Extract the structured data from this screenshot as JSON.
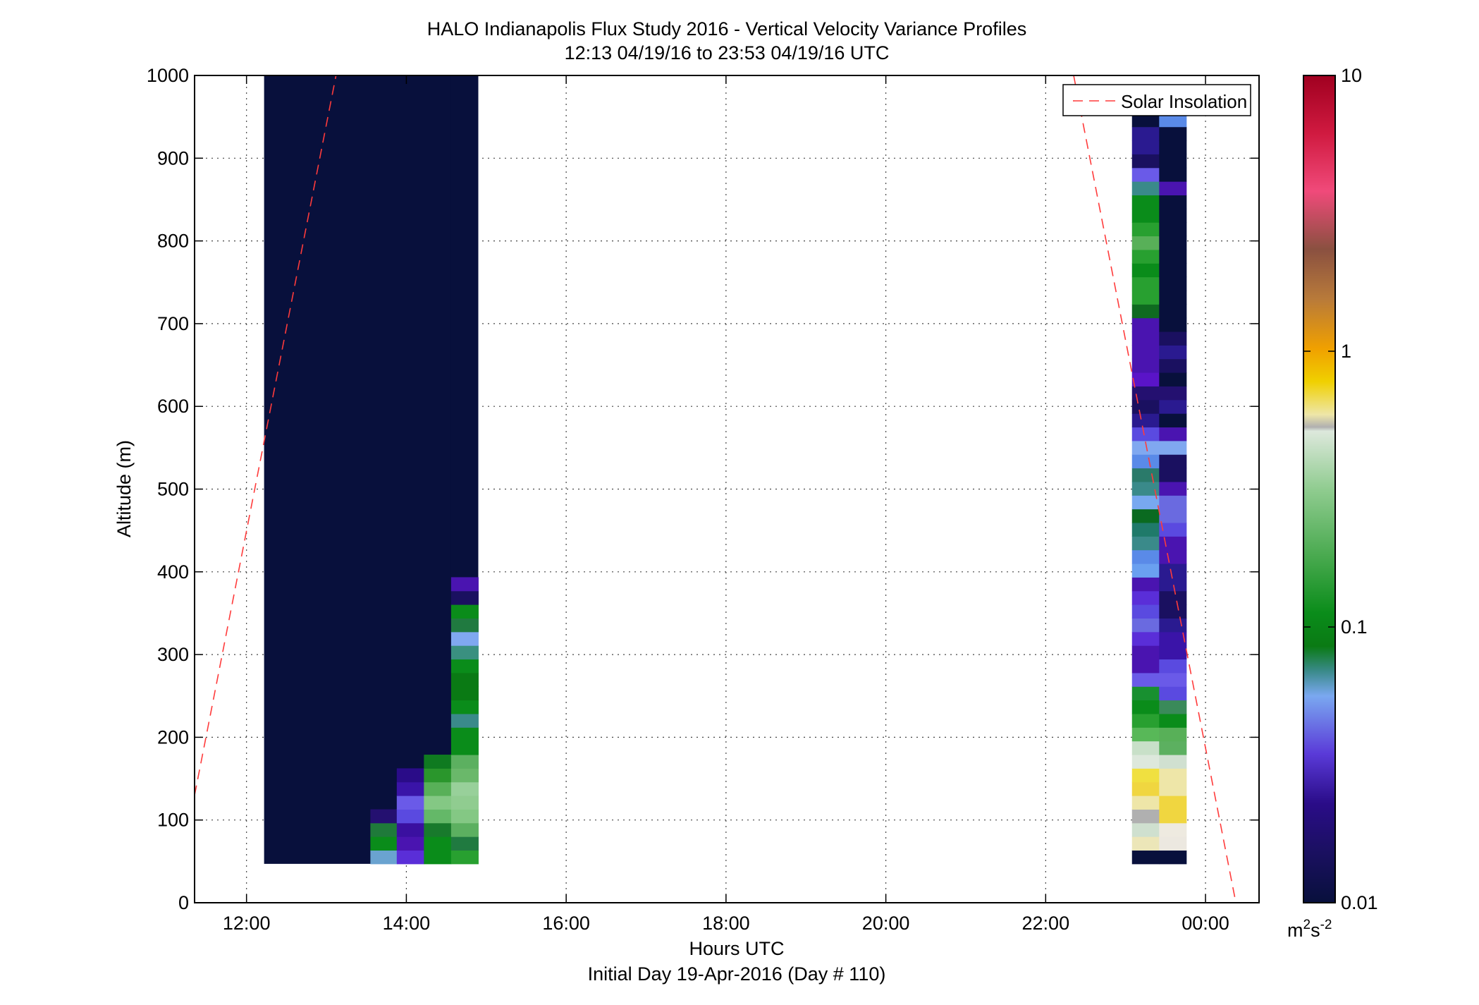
{
  "chart_data": {
    "type": "heatmap",
    "title": "HALO Indianapolis Flux Study 2016 - Vertical Velocity Variance Profiles",
    "subtitle": "12:13 04/19/16 to 23:53 04/19/16  UTC",
    "xlabel": "Hours UTC",
    "xlabel2": "Initial Day 19-Apr-2016 (Day # 110)",
    "ylabel": "Altitude (m)",
    "xlim": [
      11.35,
      24.67
    ],
    "ylim": [
      0,
      1000
    ],
    "x_ticks": [
      12,
      14,
      16,
      18,
      20,
      22,
      24
    ],
    "x_tick_labels": [
      "12:00",
      "14:00",
      "16:00",
      "18:00",
      "20:00",
      "22:00",
      "00:00"
    ],
    "y_ticks": [
      0,
      100,
      200,
      300,
      400,
      500,
      600,
      700,
      800,
      900,
      1000
    ],
    "y_tick_labels": [
      "0",
      "100",
      "200",
      "300",
      "400",
      "500",
      "600",
      "700",
      "800",
      "900",
      "1000"
    ],
    "grid": true,
    "legend_position": "top-right",
    "colorbar": {
      "scale": "log",
      "range": [
        0.01,
        10
      ],
      "tick_values": [
        0.01,
        0.1,
        1,
        10
      ],
      "tick_labels": [
        "0.01",
        "0.1",
        "1",
        "10"
      ],
      "unit_base": "m",
      "unit_sup1": "2",
      "unit_mid": "s",
      "unit_sup2": "-2"
    },
    "series": [
      {
        "name": "Solar Insolation",
        "type": "line",
        "style": "dashed",
        "color": "#ff3b3b",
        "segments": [
          [
            [
              11.35,
              130
            ],
            [
              13.12,
              1000
            ]
          ],
          [
            [
              22.35,
              1000
            ],
            [
              24.38,
              0
            ]
          ]
        ]
      }
    ],
    "heatmap": {
      "y_bins_start": 47,
      "y_bin_height": 16.5,
      "columns": [
        {
          "x_start": 12.22,
          "x_end": 14.9,
          "bottom": [],
          "fill": "#08103c",
          "fill_top": 1000
        },
        {
          "x_start": 13.55,
          "x_end": 13.88,
          "bottom": [
            "#6aa3d0",
            "#0a8c1a",
            "#1f7a3a",
            "#241070"
          ],
          "fill": "#08103c",
          "fill_top": 1000
        },
        {
          "x_start": 13.88,
          "x_end": 14.22,
          "bottom": [
            "#5a2ed8",
            "#4a14b0",
            "#3a10a0",
            "#5a4ae0",
            "#6a5ae8",
            "#3a14a8",
            "#2a0c88"
          ],
          "fill": "#08103c",
          "fill_top": 1000
        },
        {
          "x_start": 14.22,
          "x_end": 14.56,
          "bottom": [
            "#0a8c1a",
            "#0a8c1a",
            "#187a2c",
            "#64b868",
            "#84c884",
            "#58b058",
            "#2a962c",
            "#0f7a20"
          ],
          "fill": "#08103c",
          "fill_top": 1000
        },
        {
          "x_start": 14.56,
          "x_end": 14.9,
          "bottom": [
            "#28a030",
            "#207a40",
            "#5cb060",
            "#84c884",
            "#90cc90",
            "#98d09a",
            "#6ab86a",
            "#5cb060",
            "#0a8c1a",
            "#0a8c1a",
            "#3a8a8a",
            "#0a8c1a",
            "#0a7a14",
            "#0a7a14",
            "#0a8c1a",
            "#3a9080",
            "#80a8f0",
            "#207a40",
            "#0a8c1a",
            "#1a1060",
            "#4a14b0"
          ],
          "fill": "#08103c",
          "fill_top": 1000
        },
        {
          "x_start": 23.08,
          "x_end": 23.42,
          "bottom": [
            "#08103c",
            "#ece6b8",
            "#cfe0cf",
            "#b0b0b0",
            "#eee6a8",
            "#f0d640",
            "#f0e040",
            "#dde8dc",
            "#c8e0c8",
            "#58b858",
            "#28a030",
            "#0a8c1a",
            "#189030",
            "#6a5ae8",
            "#4a14b0",
            "#4a14b0",
            "#5a2ed8",
            "#6a6ae0",
            "#5a4ae0",
            "#5a2ed8",
            "#4a14b0",
            "#6aa0f0",
            "#5a8ae8",
            "#3a8a8a",
            "#1f7a6a",
            "#0a6a20",
            "#78a8f0",
            "#3a8a8a",
            "#2a7a6a",
            "#5a8ae8",
            "#80a8f0",
            "#5a4ae0",
            "#2a1a90",
            "#1a1060",
            "#241070",
            "#5a14c8",
            "#4a14b0",
            "#4a14b0",
            "#4a14b0",
            "#4a14b0",
            "#0f6a20",
            "#28a030",
            "#28a030",
            "#0a8c1a",
            "#28a030",
            "#58b058",
            "#28a030",
            "#0a8c1a",
            "#0a8c1a",
            "#3a8a8a",
            "#6a5ae8",
            "#1a1060",
            "#2a1a90",
            "#2a1a90",
            "#08103c"
          ]
        },
        {
          "x_start": 23.42,
          "x_end": 23.76,
          "bottom": [
            "#08103c",
            "#ece8e0",
            "#eeeae0",
            "#f0d640",
            "#f0d640",
            "#eee6a8",
            "#eee6a8",
            "#d0e0d0",
            "#5cb060",
            "#58b058",
            "#0a8c1a",
            "#3a8a5a",
            "#5a4ae0",
            "#6a5ae8",
            "#5a4ae0",
            "#3a14a8",
            "#3a14a8",
            "#2a1a90",
            "#1a1060",
            "#1a1060",
            "#2a1a90",
            "#2a1a90",
            "#4a14b0",
            "#4a14b0",
            "#5a4ae0",
            "#6a6ae0",
            "#6a6ae0",
            "#4a14b0",
            "#1a1060",
            "#1a1060",
            "#80a8f0",
            "#4a14b0",
            "#08103c",
            "#2a1a90",
            "#241070",
            "#08103c",
            "#1a1060",
            "#2a1a90",
            "#1a1060",
            "#08103c",
            "#08103c",
            "#08103c",
            "#08103c",
            "#08103c",
            "#08103c",
            "#08103c",
            "#08103c",
            "#08103c",
            "#08103c",
            "#4a14b0",
            "#08103c",
            "#08103c",
            "#08103c",
            "#08103c",
            "#5a8ae8"
          ]
        }
      ]
    }
  }
}
